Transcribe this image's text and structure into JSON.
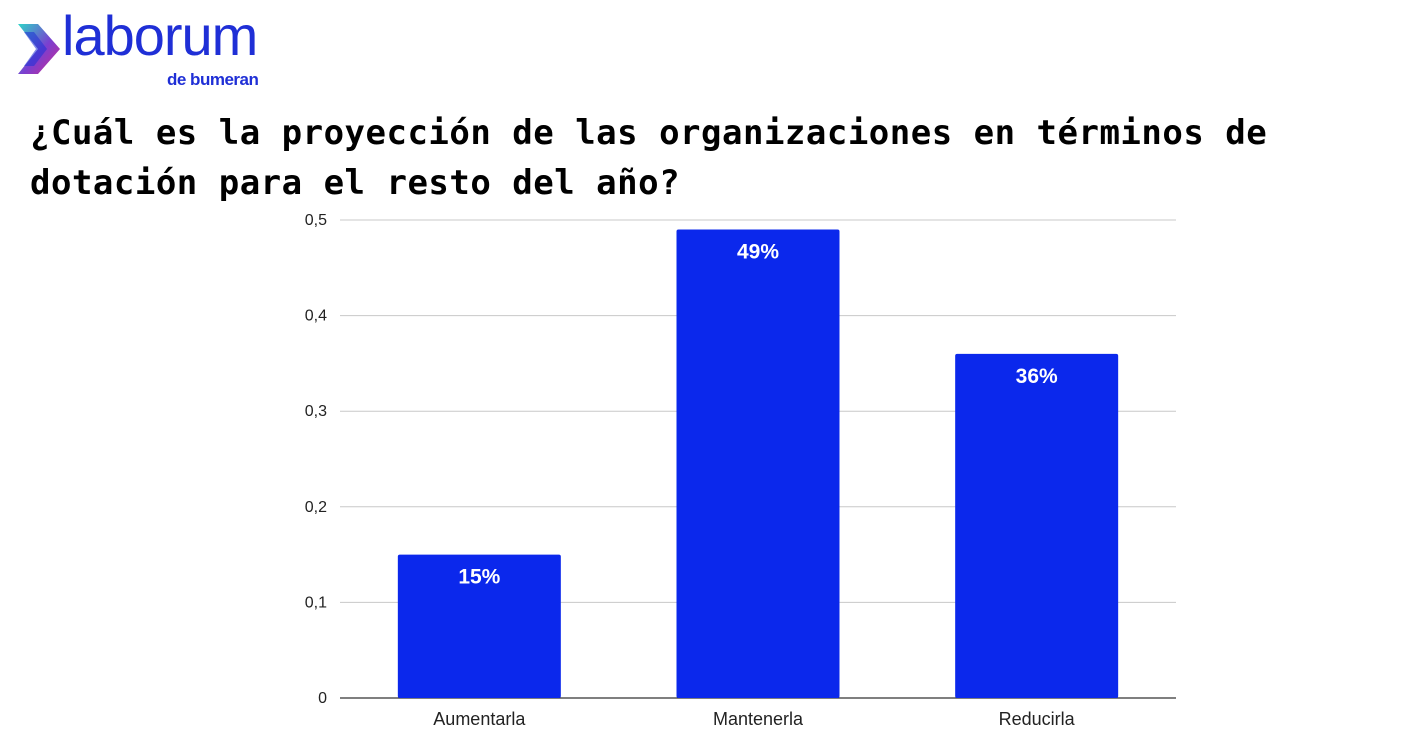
{
  "logo": {
    "wordmark": "laborum",
    "sub": "de bumeran",
    "icon": "chevron-arrow-icon",
    "colors": {
      "primary": "#1f2fd6",
      "accent": "#2ed4c8",
      "magenta": "#d02a8f"
    }
  },
  "title": "¿Cuál es la proyección de las organizaciones en términos de dotación para el resto del año?",
  "chart_data": {
    "type": "bar",
    "categories": [
      "Aumentarla",
      "Mantenerla",
      "Reducirla"
    ],
    "values": [
      0.15,
      0.49,
      0.36
    ],
    "data_labels": [
      "15%",
      "49%",
      "36%"
    ],
    "ylim": [
      0,
      0.5
    ],
    "yticks": [
      0,
      0.1,
      0.2,
      0.3,
      0.4,
      0.5
    ],
    "ytick_labels": [
      "0",
      "0,1",
      "0,2",
      "0,3",
      "0,4",
      "0,5"
    ],
    "grid": true,
    "bar_color": "#0b28ec",
    "xlabel": "",
    "ylabel": ""
  }
}
